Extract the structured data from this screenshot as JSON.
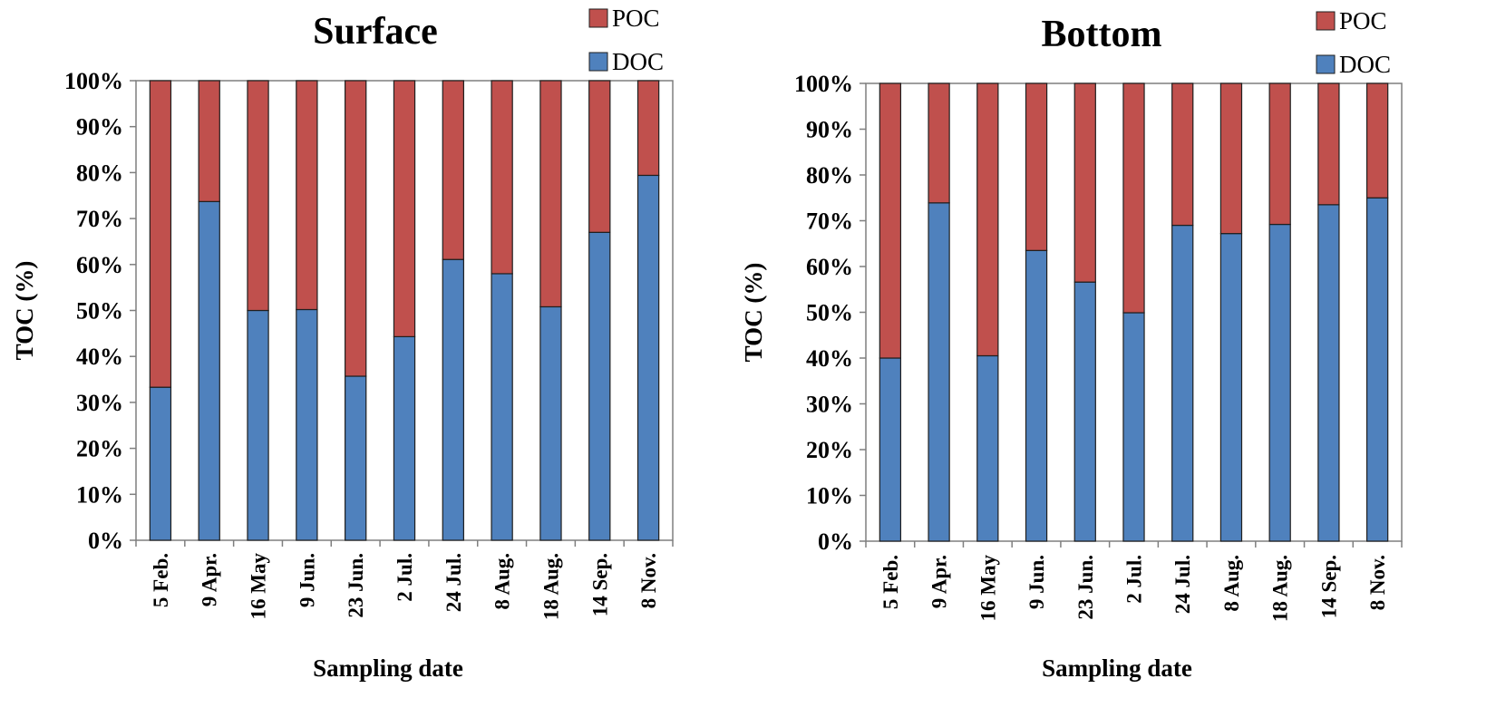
{
  "chart_data": [
    {
      "type": "bar",
      "stacked": true,
      "normalized": true,
      "title": "Surface",
      "xlabel": "Sampling date",
      "ylabel": "TOC (%)",
      "ylim": [
        0,
        100
      ],
      "yticks": [
        "0%",
        "10%",
        "20%",
        "30%",
        "40%",
        "50%",
        "60%",
        "70%",
        "80%",
        "90%",
        "100%"
      ],
      "categories": [
        "5 Feb.",
        "9 Apr.",
        "16 May",
        "9 Jun.",
        "23 Jun.",
        "2 Jul.",
        "24 Jul.",
        "8 Aug.",
        "18 Aug.",
        "14 Sep.",
        "8 Nov."
      ],
      "series": [
        {
          "name": "DOC",
          "color": "#4f81bd",
          "values": [
            33.3,
            73.7,
            50.0,
            50.2,
            35.7,
            44.3,
            61.1,
            58.0,
            50.8,
            67.0,
            79.4
          ]
        },
        {
          "name": "POC",
          "color": "#c0504d",
          "values": [
            66.7,
            26.3,
            50.0,
            49.8,
            64.3,
            55.7,
            38.9,
            42.0,
            49.2,
            33.0,
            20.6
          ]
        }
      ],
      "legend": {
        "position": "top-right",
        "entries": [
          "POC",
          "DOC"
        ]
      },
      "grid": false
    },
    {
      "type": "bar",
      "stacked": true,
      "normalized": true,
      "title": "Bottom",
      "xlabel": "Sampling date",
      "ylabel": "TOC (%)",
      "ylim": [
        0,
        100
      ],
      "yticks": [
        "0%",
        "10%",
        "20%",
        "30%",
        "40%",
        "50%",
        "60%",
        "70%",
        "80%",
        "90%",
        "100%"
      ],
      "categories": [
        "5 Feb.",
        "9 Apr.",
        "16 May",
        "9 Jun.",
        "23 Jun.",
        "2 Jul.",
        "24 Jul.",
        "8 Aug.",
        "18 Aug.",
        "14 Sep.",
        "8 Nov."
      ],
      "series": [
        {
          "name": "DOC",
          "color": "#4f81bd",
          "values": [
            40.0,
            73.9,
            40.5,
            63.5,
            56.6,
            49.9,
            69.0,
            67.2,
            69.2,
            73.5,
            75.0
          ]
        },
        {
          "name": "POC",
          "color": "#c0504d",
          "values": [
            60.0,
            26.1,
            59.5,
            36.5,
            43.4,
            50.1,
            31.0,
            32.8,
            30.8,
            26.5,
            25.0
          ]
        }
      ],
      "legend": {
        "position": "top-right",
        "entries": [
          "POC",
          "DOC"
        ]
      },
      "grid": false
    }
  ]
}
